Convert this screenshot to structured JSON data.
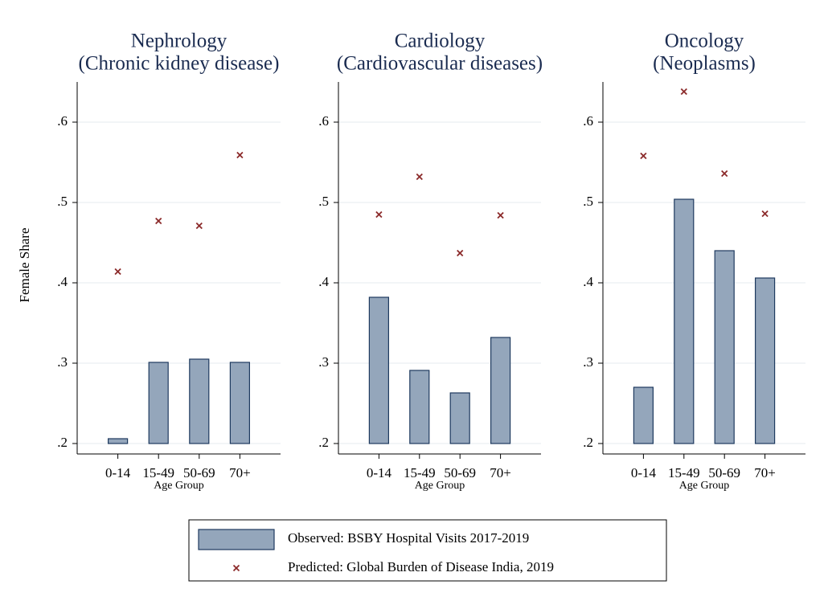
{
  "chart_data": [
    {
      "type": "bar",
      "title": "Nephrology",
      "subtitle": "(Chronic kidney disease)",
      "categories": [
        "0-14",
        "15-49",
        "50-69",
        "70+"
      ],
      "series": [
        {
          "name": "Observed: BSBY Hospital Visits 2017-2019",
          "type": "bar",
          "color": "#94a6bb",
          "values": [
            0.206,
            0.301,
            0.305,
            0.301
          ]
        },
        {
          "name": "Predicted: Global Burden of Disease India, 2019",
          "type": "scatter",
          "color": "#8b2a2a",
          "values": [
            0.414,
            0.477,
            0.471,
            0.559
          ]
        }
      ],
      "ylim": [
        0.187,
        0.65
      ],
      "yticks": [
        {
          "value": 0.2,
          "label": ".2"
        },
        {
          "value": 0.3,
          "label": ".3"
        },
        {
          "value": 0.4,
          "label": ".4"
        },
        {
          "value": 0.5,
          "label": ".5"
        },
        {
          "value": 0.6,
          "label": ".6"
        }
      ],
      "grid": true,
      "xlabel": "Age Group",
      "ylabel": "Female Share",
      "legend": "bottom"
    },
    {
      "type": "bar",
      "title": "Cardiology",
      "subtitle": "(Cardiovascular diseases)",
      "categories": [
        "0-14",
        "15-49",
        "50-69",
        "70+"
      ],
      "series": [
        {
          "type": "bar",
          "color": "#94a6bb",
          "values": [
            0.382,
            0.291,
            0.263,
            0.332
          ]
        },
        {
          "type": "scatter",
          "color": "#8b2a2a",
          "values": [
            0.485,
            0.532,
            0.437,
            0.484
          ]
        }
      ],
      "ylim": [
        0.187,
        0.65
      ],
      "yticks": [
        {
          "value": 0.2,
          "label": ".2"
        },
        {
          "value": 0.3,
          "label": ".3"
        },
        {
          "value": 0.4,
          "label": ".4"
        },
        {
          "value": 0.5,
          "label": ".5"
        },
        {
          "value": 0.6,
          "label": ".6"
        }
      ],
      "grid": true,
      "xlabel": "Age Group"
    },
    {
      "type": "bar",
      "title": "Oncology",
      "subtitle": "(Neoplasms)",
      "categories": [
        "0-14",
        "15-49",
        "50-69",
        "70+"
      ],
      "series": [
        {
          "type": "bar",
          "color": "#94a6bb",
          "values": [
            0.27,
            0.504,
            0.44,
            0.406
          ]
        },
        {
          "type": "scatter",
          "color": "#8b2a2a",
          "values": [
            0.558,
            0.638,
            0.536,
            0.486
          ]
        }
      ],
      "ylim": [
        0.187,
        0.65
      ],
      "yticks": [
        {
          "value": 0.2,
          "label": ".2"
        },
        {
          "value": 0.3,
          "label": ".3"
        },
        {
          "value": 0.4,
          "label": ".4"
        },
        {
          "value": 0.5,
          "label": ".5"
        },
        {
          "value": 0.6,
          "label": ".6"
        }
      ],
      "grid": true,
      "xlabel": "Age Group"
    }
  ]
}
